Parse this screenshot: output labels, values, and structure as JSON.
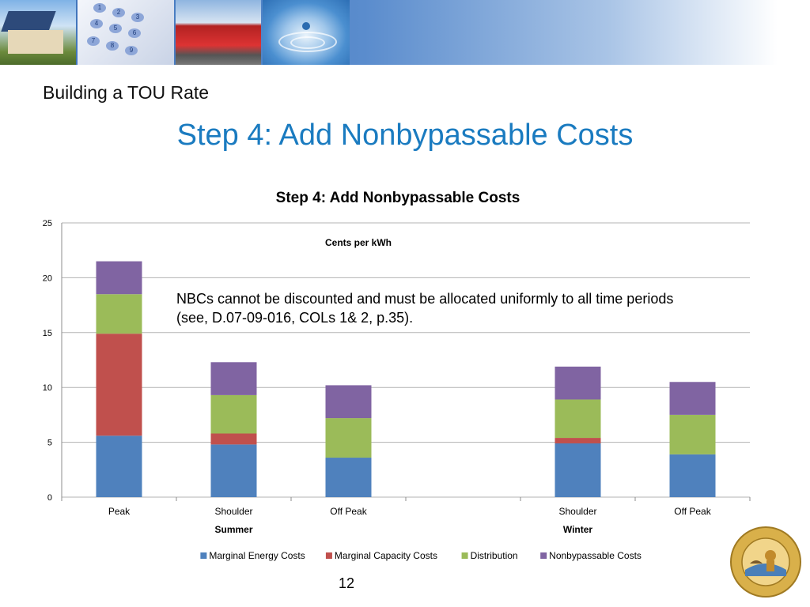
{
  "slide": {
    "pretitle": "Building a TOU Rate",
    "title": "Step 4: Add Nonbypassable Costs",
    "note": "NBCs cannot be discounted and must be allocated uniformly to all time periods (see, D.07-09-016, COLs 1& 2, p.35).",
    "page_number": "12",
    "seal_text": "PUBLIC UTILITIES COMMISSION · STATE OF CALIFORNIA · EUREKA"
  },
  "banner": {
    "images": [
      "house-with-solar-panels",
      "telephone-keypad",
      "red-train",
      "water-drop"
    ],
    "keypad_digits": [
      "1",
      "2",
      "3",
      "4",
      "5",
      "6",
      "7",
      "8",
      "9"
    ]
  },
  "colors": {
    "title": "#1a7bc0",
    "energy": "#4f81bd",
    "capacity": "#c0504d",
    "distribution": "#9bbb59",
    "nonbypassable": "#8064a2"
  },
  "chart_data": {
    "type": "bar",
    "stacked": true,
    "title": "Step 4: Add Nonbypassable Costs",
    "annotation": "Cents per kWh",
    "categories": [
      "Peak",
      "Shoulder",
      "Off Peak",
      "",
      "Shoulder",
      "Off Peak"
    ],
    "groups": [
      {
        "label": "Summer",
        "categories": [
          0,
          1,
          2
        ]
      },
      {
        "label": "Winter",
        "categories": [
          3,
          4,
          5
        ]
      }
    ],
    "series": [
      {
        "name": "Marginal Energy Costs",
        "color": "#4f81bd",
        "values": [
          5.6,
          4.8,
          3.6,
          null,
          4.9,
          3.9
        ]
      },
      {
        "name": "Marginal Capacity Costs",
        "color": "#c0504d",
        "values": [
          9.3,
          1.0,
          0,
          null,
          0.5,
          0
        ]
      },
      {
        "name": "Distribution",
        "color": "#9bbb59",
        "values": [
          3.6,
          3.5,
          3.6,
          null,
          3.5,
          3.6
        ]
      },
      {
        "name": "Nonbypassable Costs",
        "color": "#8064a2",
        "values": [
          3.0,
          3.0,
          3.0,
          null,
          3.0,
          3.0
        ]
      }
    ],
    "ylim": [
      0,
      25
    ],
    "yticks": [
      0,
      5,
      10,
      15,
      20,
      25
    ],
    "grid": true,
    "legend": "bottom"
  }
}
